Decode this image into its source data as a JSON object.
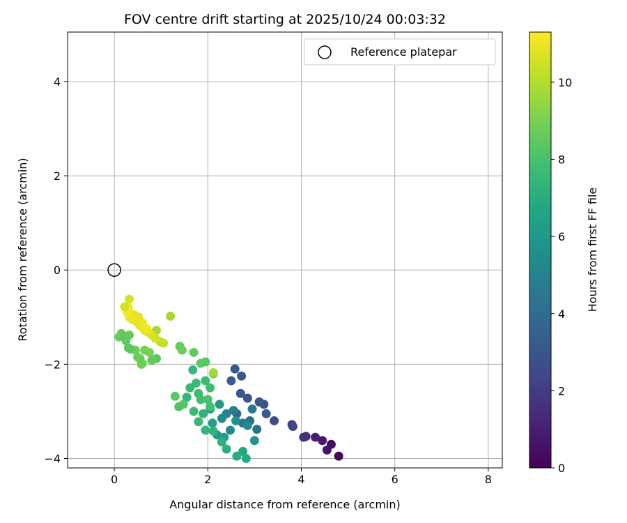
{
  "chart_data": {
    "type": "scatter",
    "title": "FOV centre drift starting at 2025/10/24 00:03:32",
    "xlabel": "Angular distance from reference (arcmin)",
    "ylabel": "Rotation from reference (arcmin)",
    "xlim": [
      -1.0,
      8.3
    ],
    "ylim": [
      -4.2,
      5.05
    ],
    "xticks": [
      "0",
      "2",
      "4",
      "6",
      "8"
    ],
    "yticks": [
      "−4",
      "−2",
      "0",
      "2",
      "4"
    ],
    "grid": true,
    "legend": {
      "position": "top-right",
      "entries": [
        "Reference platepar"
      ]
    },
    "reference_point": {
      "x": 0,
      "y": 0
    },
    "colorbar": {
      "label": "Hours from first FF file",
      "min": 0,
      "max": 11.3,
      "ticks": [
        "0",
        "2",
        "4",
        "6",
        "8",
        "10"
      ],
      "colormap": "viridis"
    },
    "series": [
      {
        "color_by": "hours",
        "points": [
          {
            "x": 4.8,
            "y": -3.95,
            "c": 0.2
          },
          {
            "x": 4.64,
            "y": -3.7,
            "c": 0.4
          },
          {
            "x": 4.55,
            "y": -3.82,
            "c": 0.6
          },
          {
            "x": 4.45,
            "y": -3.62,
            "c": 0.8
          },
          {
            "x": 4.3,
            "y": -3.55,
            "c": 1.0
          },
          {
            "x": 4.1,
            "y": -3.53,
            "c": 1.4
          },
          {
            "x": 4.05,
            "y": -3.55,
            "c": 1.6
          },
          {
            "x": 3.8,
            "y": -3.28,
            "c": 2.2
          },
          {
            "x": 3.82,
            "y": -3.32,
            "c": 2.4
          },
          {
            "x": 3.42,
            "y": -3.2,
            "c": 2.6
          },
          {
            "x": 3.2,
            "y": -2.85,
            "c": 2.8
          },
          {
            "x": 3.1,
            "y": -2.8,
            "c": 3.0
          },
          {
            "x": 3.25,
            "y": -3.05,
            "c": 3.2
          },
          {
            "x": 2.85,
            "y": -2.72,
            "c": 2.9
          },
          {
            "x": 2.7,
            "y": -2.62,
            "c": 3.0
          },
          {
            "x": 2.58,
            "y": -2.1,
            "c": 3.1
          },
          {
            "x": 2.72,
            "y": -2.25,
            "c": 3.2
          },
          {
            "x": 2.5,
            "y": -2.35,
            "c": 3.3
          },
          {
            "x": 2.62,
            "y": -3.05,
            "c": 3.6
          },
          {
            "x": 2.9,
            "y": -3.2,
            "c": 4.0
          },
          {
            "x": 3.05,
            "y": -3.38,
            "c": 4.2
          },
          {
            "x": 2.75,
            "y": -3.25,
            "c": 4.5
          },
          {
            "x": 2.95,
            "y": -2.95,
            "c": 4.6
          },
          {
            "x": 2.55,
            "y": -2.98,
            "c": 4.8
          },
          {
            "x": 2.4,
            "y": -3.05,
            "c": 5.0
          },
          {
            "x": 2.48,
            "y": -3.4,
            "c": 5.2
          },
          {
            "x": 2.3,
            "y": -3.15,
            "c": 5.4
          },
          {
            "x": 2.6,
            "y": -3.2,
            "c": 5.6
          },
          {
            "x": 2.85,
            "y": -3.3,
            "c": 5.3
          },
          {
            "x": 3.0,
            "y": -3.62,
            "c": 5.8
          },
          {
            "x": 2.2,
            "y": -3.5,
            "c": 6.1
          },
          {
            "x": 2.35,
            "y": -3.55,
            "c": 6.3
          },
          {
            "x": 2.1,
            "y": -3.25,
            "c": 6.5
          },
          {
            "x": 2.25,
            "y": -2.85,
            "c": 6.0
          },
          {
            "x": 2.05,
            "y": -2.95,
            "c": 6.6
          },
          {
            "x": 2.75,
            "y": -3.85,
            "c": 6.8
          },
          {
            "x": 2.82,
            "y": -4.0,
            "c": 6.9
          },
          {
            "x": 2.62,
            "y": -3.95,
            "c": 7.0
          },
          {
            "x": 2.4,
            "y": -3.8,
            "c": 7.1
          },
          {
            "x": 2.3,
            "y": -3.65,
            "c": 7.2
          },
          {
            "x": 2.12,
            "y": -3.42,
            "c": 7.3
          },
          {
            "x": 1.95,
            "y": -3.4,
            "c": 7.4
          },
          {
            "x": 1.8,
            "y": -3.22,
            "c": 7.5
          },
          {
            "x": 1.9,
            "y": -3.05,
            "c": 7.3
          },
          {
            "x": 1.7,
            "y": -3.0,
            "c": 7.6
          },
          {
            "x": 1.55,
            "y": -2.7,
            "c": 7.4
          },
          {
            "x": 1.62,
            "y": -2.5,
            "c": 7.5
          },
          {
            "x": 1.75,
            "y": -2.4,
            "c": 7.6
          },
          {
            "x": 1.8,
            "y": -2.62,
            "c": 7.7
          },
          {
            "x": 1.95,
            "y": -2.35,
            "c": 7.6
          },
          {
            "x": 2.05,
            "y": -2.5,
            "c": 7.8
          },
          {
            "x": 1.68,
            "y": -2.12,
            "c": 7.5
          },
          {
            "x": 1.85,
            "y": -2.75,
            "c": 7.9
          },
          {
            "x": 2.0,
            "y": -2.75,
            "c": 8.0
          },
          {
            "x": 2.12,
            "y": -2.2,
            "c": 8.1
          },
          {
            "x": 2.05,
            "y": -2.9,
            "c": 7.9
          },
          {
            "x": 1.38,
            "y": -2.9,
            "c": 8.2
          },
          {
            "x": 1.48,
            "y": -2.85,
            "c": 8.3
          },
          {
            "x": 1.3,
            "y": -2.68,
            "c": 8.4
          },
          {
            "x": 1.85,
            "y": -1.98,
            "c": 8.5
          },
          {
            "x": 1.95,
            "y": -1.95,
            "c": 8.4
          },
          {
            "x": 1.7,
            "y": -1.75,
            "c": 8.6
          },
          {
            "x": 1.4,
            "y": -1.62,
            "c": 8.6
          },
          {
            "x": 1.45,
            "y": -1.7,
            "c": 8.7
          },
          {
            "x": 0.9,
            "y": -1.88,
            "c": 8.5
          },
          {
            "x": 0.8,
            "y": -1.92,
            "c": 8.6
          },
          {
            "x": 0.6,
            "y": -1.98,
            "c": 8.7
          },
          {
            "x": 0.58,
            "y": -2.0,
            "c": 8.8
          },
          {
            "x": 0.55,
            "y": -1.88,
            "c": 8.6
          },
          {
            "x": 0.5,
            "y": -1.85,
            "c": 8.7
          },
          {
            "x": 0.45,
            "y": -1.7,
            "c": 8.8
          },
          {
            "x": 0.35,
            "y": -1.68,
            "c": 8.6
          },
          {
            "x": 0.3,
            "y": -1.65,
            "c": 8.4
          },
          {
            "x": 0.25,
            "y": -1.5,
            "c": 8.5
          },
          {
            "x": 0.15,
            "y": -1.35,
            "c": 8.6
          },
          {
            "x": 0.1,
            "y": -1.42,
            "c": 8.7
          },
          {
            "x": 0.2,
            "y": -1.4,
            "c": 8.5
          },
          {
            "x": 0.32,
            "y": -1.38,
            "c": 8.6
          },
          {
            "x": 0.65,
            "y": -1.7,
            "c": 8.9
          },
          {
            "x": 0.75,
            "y": -1.75,
            "c": 9.0
          },
          {
            "x": 2.12,
            "y": -2.18,
            "c": 9.7
          },
          {
            "x": 1.2,
            "y": -0.98,
            "c": 9.8
          },
          {
            "x": 0.9,
            "y": -1.28,
            "c": 9.8
          },
          {
            "x": 1.05,
            "y": -1.55,
            "c": 10.2
          },
          {
            "x": 0.98,
            "y": -1.52,
            "c": 10.3
          },
          {
            "x": 0.88,
            "y": -1.45,
            "c": 10.5
          },
          {
            "x": 0.8,
            "y": -1.38,
            "c": 10.6
          },
          {
            "x": 0.72,
            "y": -1.32,
            "c": 10.7
          },
          {
            "x": 0.65,
            "y": -1.28,
            "c": 10.8
          },
          {
            "x": 0.6,
            "y": -1.22,
            "c": 10.8
          },
          {
            "x": 0.55,
            "y": -1.18,
            "c": 10.9
          },
          {
            "x": 0.48,
            "y": -1.1,
            "c": 10.9
          },
          {
            "x": 0.42,
            "y": -0.95,
            "c": 10.8
          },
          {
            "x": 0.38,
            "y": -1.05,
            "c": 11.0
          },
          {
            "x": 0.32,
            "y": -1.0,
            "c": 11.0
          },
          {
            "x": 0.28,
            "y": -0.9,
            "c": 11.1
          },
          {
            "x": 0.3,
            "y": -0.8,
            "c": 11.1
          },
          {
            "x": 0.22,
            "y": -0.78,
            "c": 10.5
          },
          {
            "x": 0.32,
            "y": -0.62,
            "c": 10.6
          },
          {
            "x": 0.52,
            "y": -1.0,
            "c": 10.9
          },
          {
            "x": 0.6,
            "y": -1.12,
            "c": 11.0
          },
          {
            "x": 0.7,
            "y": -1.25,
            "c": 11.1
          }
        ]
      }
    ]
  }
}
